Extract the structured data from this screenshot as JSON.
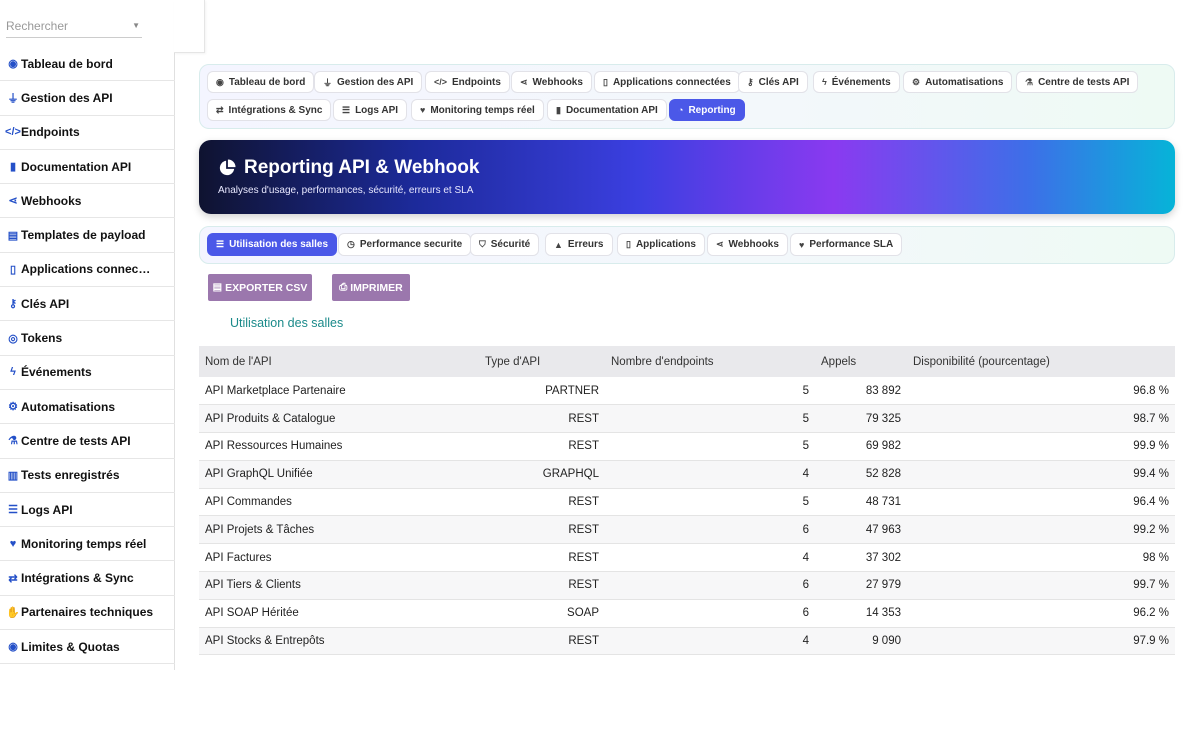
{
  "search": {
    "placeholder": "Rechercher"
  },
  "sidebar": {
    "items": [
      {
        "icon": "gauge-icon",
        "glyph": "◉",
        "label": "Tableau de bord"
      },
      {
        "icon": "plug-icon",
        "glyph": "⏚",
        "label": "Gestion des API"
      },
      {
        "icon": "code-icon",
        "glyph": "</>",
        "label": "Endpoints"
      },
      {
        "icon": "book-icon",
        "glyph": "▮",
        "label": "Documentation API"
      },
      {
        "icon": "share-icon",
        "glyph": "⋖",
        "label": "Webhooks"
      },
      {
        "icon": "file-icon",
        "glyph": "▤",
        "label": "Templates de payload"
      },
      {
        "icon": "mobile-icon",
        "glyph": "▯",
        "label": "Applications connec…"
      },
      {
        "icon": "key-icon",
        "glyph": "⚷",
        "label": "Clés API"
      },
      {
        "icon": "fingerprint-icon",
        "glyph": "◎",
        "label": "Tokens"
      },
      {
        "icon": "bolt-icon",
        "glyph": "ϟ",
        "label": "Événements"
      },
      {
        "icon": "cogs-icon",
        "glyph": "⚙",
        "label": "Automatisations"
      },
      {
        "icon": "flask-icon",
        "glyph": "⚗",
        "label": "Centre de tests API"
      },
      {
        "icon": "vials-icon",
        "glyph": "▥",
        "label": "Tests enregistrés"
      },
      {
        "icon": "list-icon",
        "glyph": "☰",
        "label": "Logs API"
      },
      {
        "icon": "heartbeat-icon",
        "glyph": "♥",
        "label": "Monitoring temps réel"
      },
      {
        "icon": "exchange-icon",
        "glyph": "⇄",
        "label": "Intégrations & Sync"
      },
      {
        "icon": "handshake-icon",
        "glyph": "✋",
        "label": "Partenaires techniques"
      },
      {
        "icon": "gauge-icon",
        "glyph": "◉",
        "label": "Limites & Quotas"
      }
    ]
  },
  "tabs": [
    {
      "icon": "gauge-icon",
      "glyph": "◉",
      "label": "Tableau de bord"
    },
    {
      "icon": "plug-icon",
      "glyph": "⏚",
      "label": "Gestion des API"
    },
    {
      "icon": "code-icon",
      "glyph": "</>",
      "label": "Endpoints"
    },
    {
      "icon": "share-icon",
      "glyph": "⋖",
      "label": "Webhooks"
    },
    {
      "icon": "mobile-icon",
      "glyph": "▯",
      "label": "Applications connectées"
    },
    {
      "icon": "key-icon",
      "glyph": "⚷",
      "label": "Clés API"
    },
    {
      "icon": "bolt-icon",
      "glyph": "ϟ",
      "label": "Événements"
    },
    {
      "icon": "cogs-icon",
      "glyph": "⚙",
      "label": "Automatisations"
    },
    {
      "icon": "flask-icon",
      "glyph": "⚗",
      "label": "Centre de tests API"
    },
    {
      "icon": "exchange-icon",
      "glyph": "⇄",
      "label": "Intégrations & Sync"
    },
    {
      "icon": "list-icon",
      "glyph": "☰",
      "label": "Logs API"
    },
    {
      "icon": "heartbeat-icon",
      "glyph": "♥",
      "label": "Monitoring temps réel"
    },
    {
      "icon": "book-icon",
      "glyph": "▮",
      "label": "Documentation API"
    },
    {
      "icon": "chart-pie-icon",
      "glyph": "◔",
      "label": "Reporting",
      "active": true
    }
  ],
  "banner": {
    "title": "Reporting API & Webhook",
    "subtitle": "Analyses d'usage, performances, sécurité, erreurs et SLA"
  },
  "subtabs": [
    {
      "icon": "list-icon",
      "glyph": "☰",
      "label": "Utilisation des salles",
      "active": true
    },
    {
      "icon": "stopwatch-icon",
      "glyph": "◷",
      "label": "Performance securite"
    },
    {
      "icon": "shield-icon",
      "glyph": "⛉",
      "label": "Sécurité"
    },
    {
      "icon": "warning-icon",
      "glyph": "▲",
      "label": "Erreurs"
    },
    {
      "icon": "mobile-icon",
      "glyph": "▯",
      "label": "Applications"
    },
    {
      "icon": "share-icon",
      "glyph": "⋖",
      "label": "Webhooks"
    },
    {
      "icon": "heartbeat-icon",
      "glyph": "♥",
      "label": "Performance SLA"
    }
  ],
  "actions": {
    "export_label": "EXPORTER CSV",
    "print_label": "IMPRIMER"
  },
  "section_title": "Utilisation des salles",
  "table": {
    "headers": [
      "Nom de l'API",
      "Type d'API",
      "Nombre d'endpoints",
      "Appels",
      "Disponibilité (pourcentage)"
    ],
    "rows": [
      [
        "API Marketplace Partenaire",
        "PARTNER",
        "5",
        "83 892",
        "96.8 %"
      ],
      [
        "API Produits & Catalogue",
        "REST",
        "5",
        "79 325",
        "98.7 %"
      ],
      [
        "API Ressources Humaines",
        "REST",
        "5",
        "69 982",
        "99.9 %"
      ],
      [
        "API GraphQL Unifiée",
        "GRAPHQL",
        "4",
        "52 828",
        "99.4 %"
      ],
      [
        "API Commandes",
        "REST",
        "5",
        "48 731",
        "96.4 %"
      ],
      [
        "API Projets & Tâches",
        "REST",
        "6",
        "47 963",
        "99.2 %"
      ],
      [
        "API Factures",
        "REST",
        "4",
        "37 302",
        "98 %"
      ],
      [
        "API Tiers & Clients",
        "REST",
        "6",
        "27 979",
        "99.7 %"
      ],
      [
        "API SOAP Héritée",
        "SOAP",
        "6",
        "14 353",
        "96.2 %"
      ],
      [
        "API Stocks & Entrepôts",
        "REST",
        "4",
        "9 090",
        "97.9 %"
      ]
    ]
  }
}
